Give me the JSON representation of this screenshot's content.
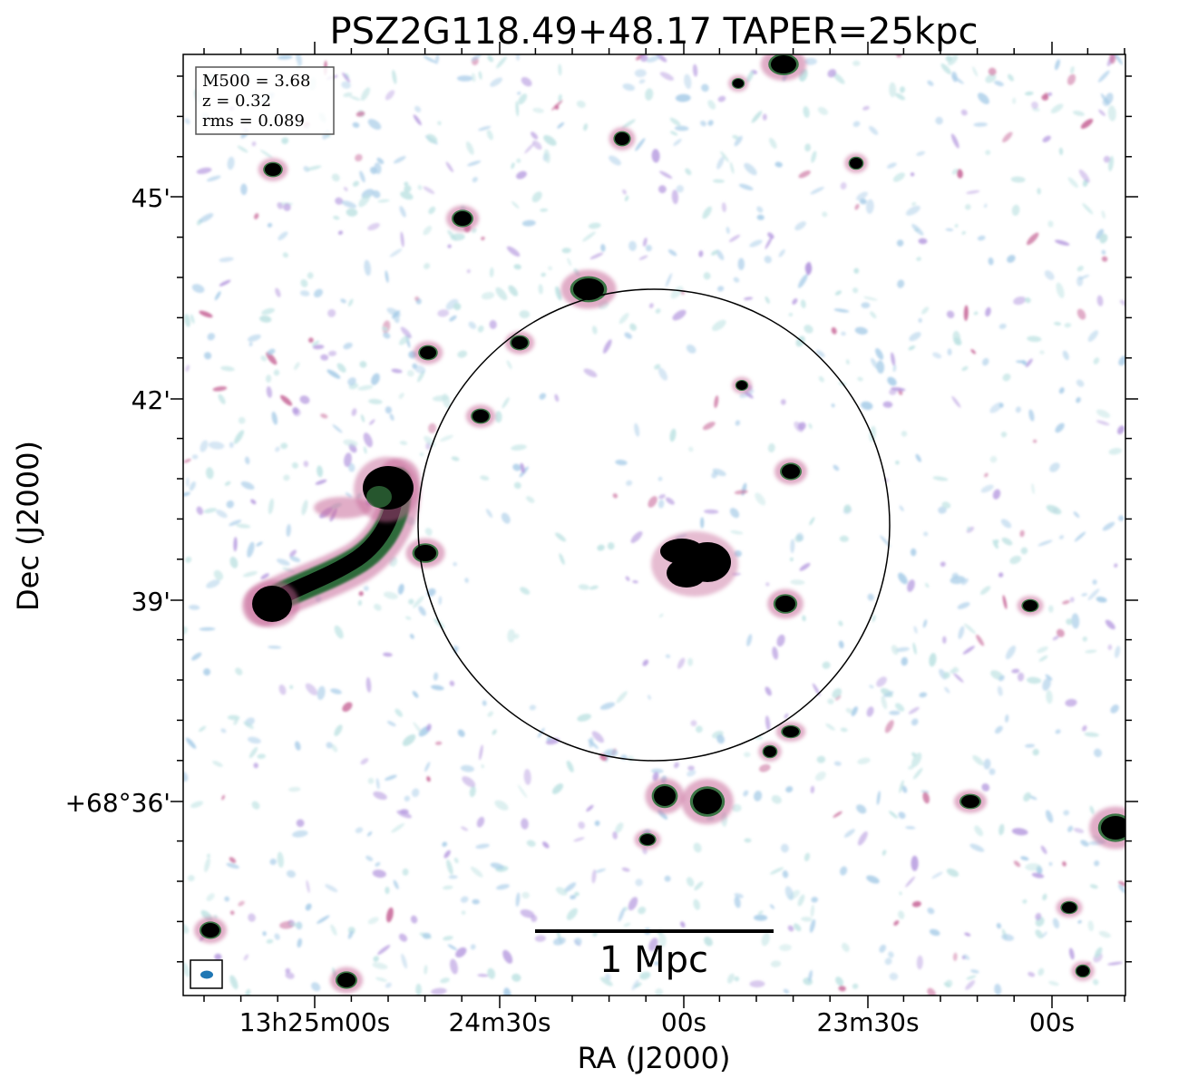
{
  "title": "PSZ2G118.49+48.17 TAPER=25kpc",
  "info": {
    "line1": "M500 = 3.68",
    "line2": "z = 0.32",
    "line3": "rms = 0.089"
  },
  "axes": {
    "xlabel": "RA (J2000)",
    "ylabel": "Dec (J2000)",
    "xticks": [
      "13h25m00s",
      "24m30s",
      "00s",
      "23m30s",
      "00s"
    ],
    "yticks": [
      "45'",
      "42'",
      "39'",
      "+68°36'"
    ]
  },
  "scalebar": {
    "label": "1 Mpc"
  },
  "colors": {
    "frame": "#000000",
    "beam": "#1f77b4",
    "source_core": "#000000",
    "source_green": "#1f6b2f",
    "source_pink": "#c86a9a",
    "noise_lilac": "#b89de0",
    "noise_blue": "#a9cde8",
    "noise_cyan": "#bfe3e3"
  }
}
